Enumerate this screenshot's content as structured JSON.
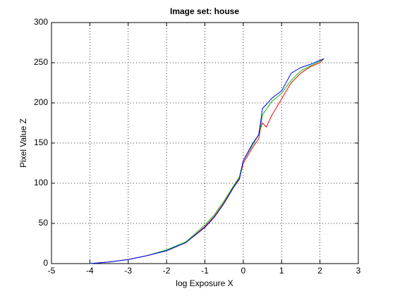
{
  "chart_data": {
    "type": "line",
    "title": "Image set: house",
    "x_label": "log Exposure X",
    "y_label": "Pixel Value Z",
    "x": [
      -4,
      -3.5,
      -3,
      -2.5,
      -2,
      -1.5,
      -1,
      -0.75,
      -0.5,
      -0.25,
      -0.1,
      0,
      0.25,
      0.4,
      0.45,
      0.5,
      0.6,
      0.75,
      1,
      1.25,
      1.5,
      1.75,
      2,
      2.1
    ],
    "series": [
      {
        "color": "#ff0000",
        "values": [
          0,
          2,
          5,
          10,
          16,
          26,
          46,
          59,
          76,
          96,
          106,
          125,
          145,
          155,
          168,
          175,
          170,
          185,
          205,
          225,
          237,
          245,
          250,
          255
        ]
      },
      {
        "color": "#00c000",
        "values": [
          0,
          2,
          5,
          10,
          17,
          27,
          48,
          61,
          78,
          97,
          108,
          128,
          148,
          160,
          170,
          185,
          192,
          202,
          212,
          228,
          240,
          246,
          252,
          255
        ]
      },
      {
        "color": "#0000ff",
        "values": [
          0,
          2,
          5,
          10,
          16,
          26,
          45,
          58,
          75,
          95,
          105,
          128,
          150,
          160,
          175,
          193,
          198,
          206,
          215,
          237,
          244,
          248,
          253,
          255
        ]
      }
    ],
    "xlim": [
      -5,
      3
    ],
    "xticks": [
      -5,
      -4,
      -3,
      -2,
      -1,
      0,
      1,
      2,
      3
    ],
    "ylim": [
      0,
      300
    ],
    "yticks": [
      0,
      50,
      100,
      150,
      200,
      250,
      300
    ],
    "grid": true
  }
}
